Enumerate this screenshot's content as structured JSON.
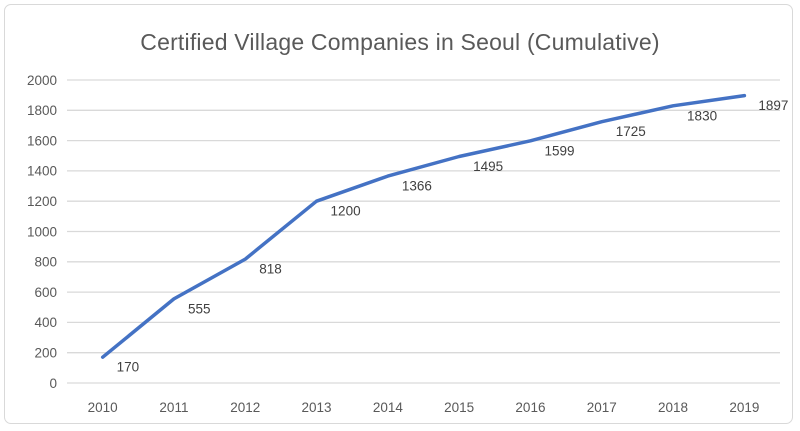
{
  "chart_data": {
    "type": "line",
    "title": "Certified Village Companies in Seoul (Cumulative)",
    "categories": [
      "2010",
      "2011",
      "2012",
      "2013",
      "2014",
      "2015",
      "2016",
      "2017",
      "2018",
      "2019"
    ],
    "values": [
      170,
      555,
      818,
      1200,
      1366,
      1495,
      1599,
      1725,
      1830,
      1897
    ],
    "xlabel": "",
    "ylabel": "",
    "ylim": [
      0,
      2000
    ],
    "yticks": [
      0,
      200,
      400,
      600,
      800,
      1000,
      1200,
      1400,
      1600,
      1800,
      2000
    ],
    "grid": true,
    "legend": false,
    "data_labels": true,
    "colors": {
      "line": "#4472C4",
      "grid": "#d9d9d9",
      "axis_text": "#595959",
      "data_label_text": "#404040",
      "title_text": "#595959",
      "frame_border": "#d9d9d9",
      "background": "#ffffff"
    }
  }
}
